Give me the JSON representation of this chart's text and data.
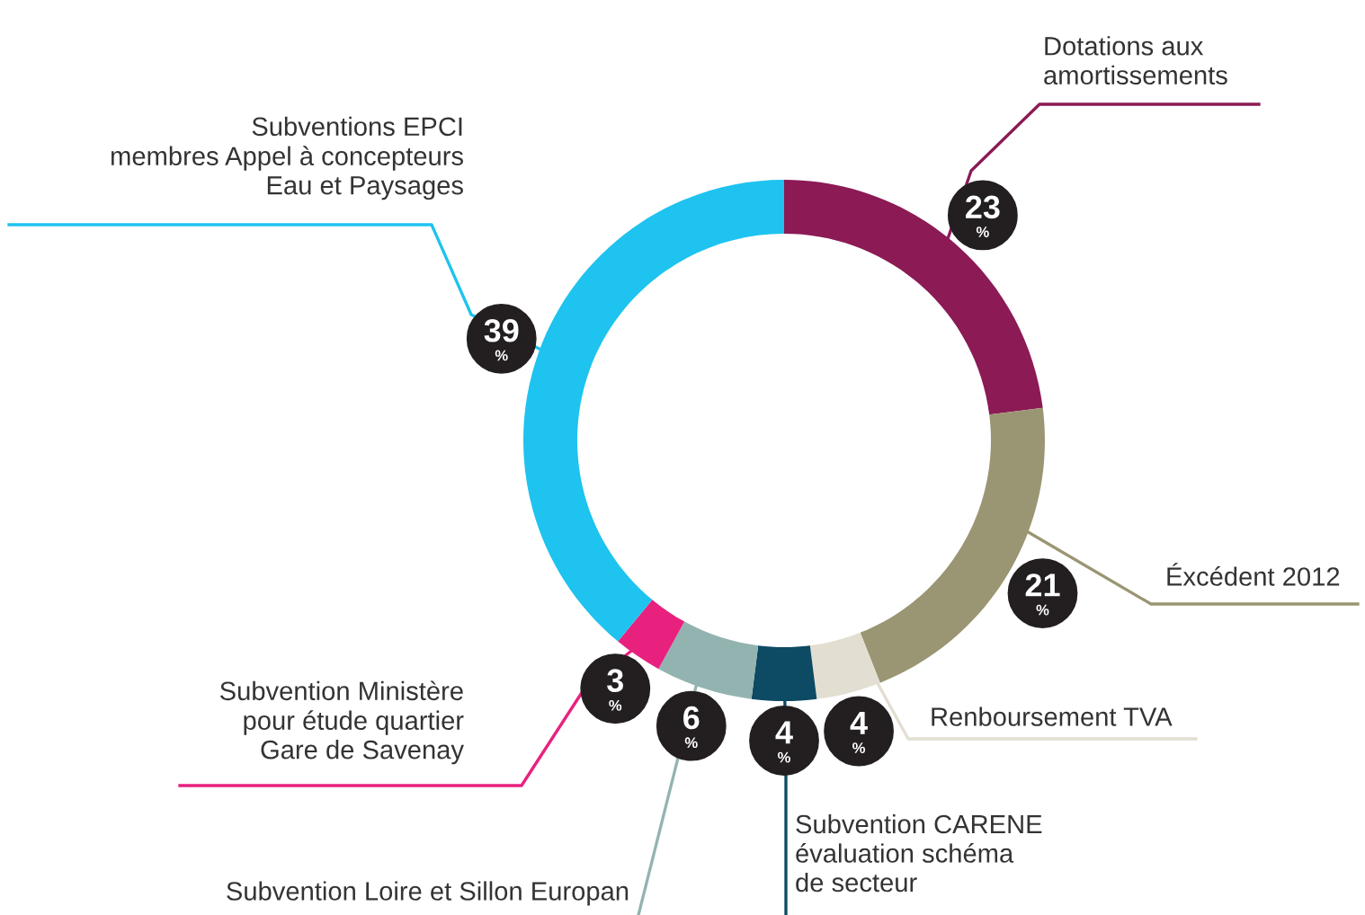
{
  "chart_data": {
    "type": "donut",
    "categories": [
      "Dotations aux\namortissements",
      "Éxcédent 2012",
      "Renboursement TVA",
      "Subvention CARENE\névaluation schéma\nde secteur",
      "Subvention Loire et Sillon Europan",
      "Subvention Ministère\npour étude quartier\nGare de Savenay",
      "Subventions EPCI\nmembres Appel à concepteurs\nEau et Paysages"
    ],
    "values": [
      23,
      21,
      4,
      4,
      6,
      3,
      39
    ],
    "value_labels": [
      "23\n%",
      "21\n%",
      "4\n%",
      "4\n%",
      "6\n%",
      "3\n%",
      "39\n%"
    ],
    "colors": [
      "#8b1a55",
      "#9a9673",
      "#e2ded1",
      "#0d4a63",
      "#93b3b0",
      "#e8217f",
      "#1ec3ef"
    ]
  }
}
